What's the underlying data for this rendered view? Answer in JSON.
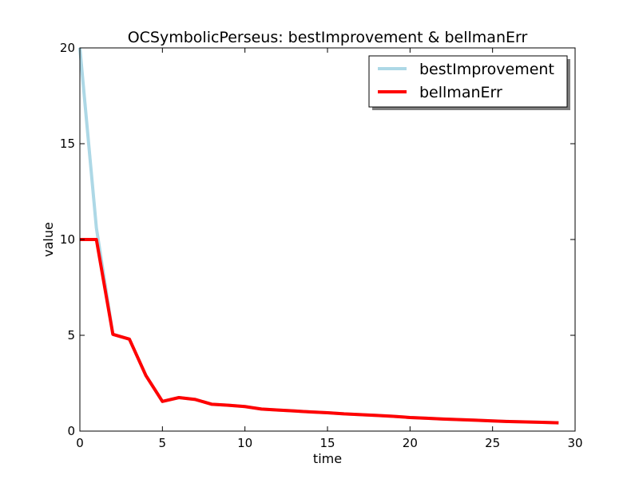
{
  "chart_data": {
    "type": "line",
    "title": "OCSymbolicPerseus: bestImprovement & bellmanErr",
    "xlabel": "time",
    "ylabel": "value",
    "xlim": [
      0,
      30
    ],
    "ylim": [
      0,
      20
    ],
    "xticks": [
      0,
      5,
      10,
      15,
      20,
      25,
      30
    ],
    "yticks": [
      0,
      5,
      10,
      15,
      20
    ],
    "grid": false,
    "legend_position": "top-right",
    "series": [
      {
        "name": "bestImprovement",
        "color": "#add8e6",
        "x": [
          0,
          1,
          2,
          3,
          4,
          5,
          6,
          7,
          8,
          9,
          10,
          11,
          12,
          13,
          14,
          15,
          16,
          17,
          18,
          19,
          20,
          21,
          22,
          23,
          24,
          25,
          26,
          27,
          28,
          29
        ],
        "y": [
          20.0,
          10.6,
          5.05,
          4.8,
          2.9,
          1.55,
          1.75,
          1.65,
          1.4,
          1.35,
          1.28,
          1.15,
          1.1,
          1.05,
          1.0,
          0.96,
          0.9,
          0.86,
          0.82,
          0.77,
          0.71,
          0.67,
          0.63,
          0.6,
          0.57,
          0.53,
          0.5,
          0.48,
          0.46,
          0.43
        ]
      },
      {
        "name": "bellmanErr",
        "color": "#ff0000",
        "x": [
          0,
          1,
          2,
          3,
          4,
          5,
          6,
          7,
          8,
          9,
          10,
          11,
          12,
          13,
          14,
          15,
          16,
          17,
          18,
          19,
          20,
          21,
          22,
          23,
          24,
          25,
          26,
          27,
          28,
          29
        ],
        "y": [
          10.0,
          10.0,
          5.05,
          4.8,
          2.9,
          1.55,
          1.75,
          1.65,
          1.4,
          1.35,
          1.28,
          1.15,
          1.1,
          1.05,
          1.0,
          0.96,
          0.9,
          0.86,
          0.82,
          0.77,
          0.71,
          0.67,
          0.63,
          0.6,
          0.57,
          0.53,
          0.5,
          0.48,
          0.46,
          0.43
        ]
      }
    ]
  }
}
